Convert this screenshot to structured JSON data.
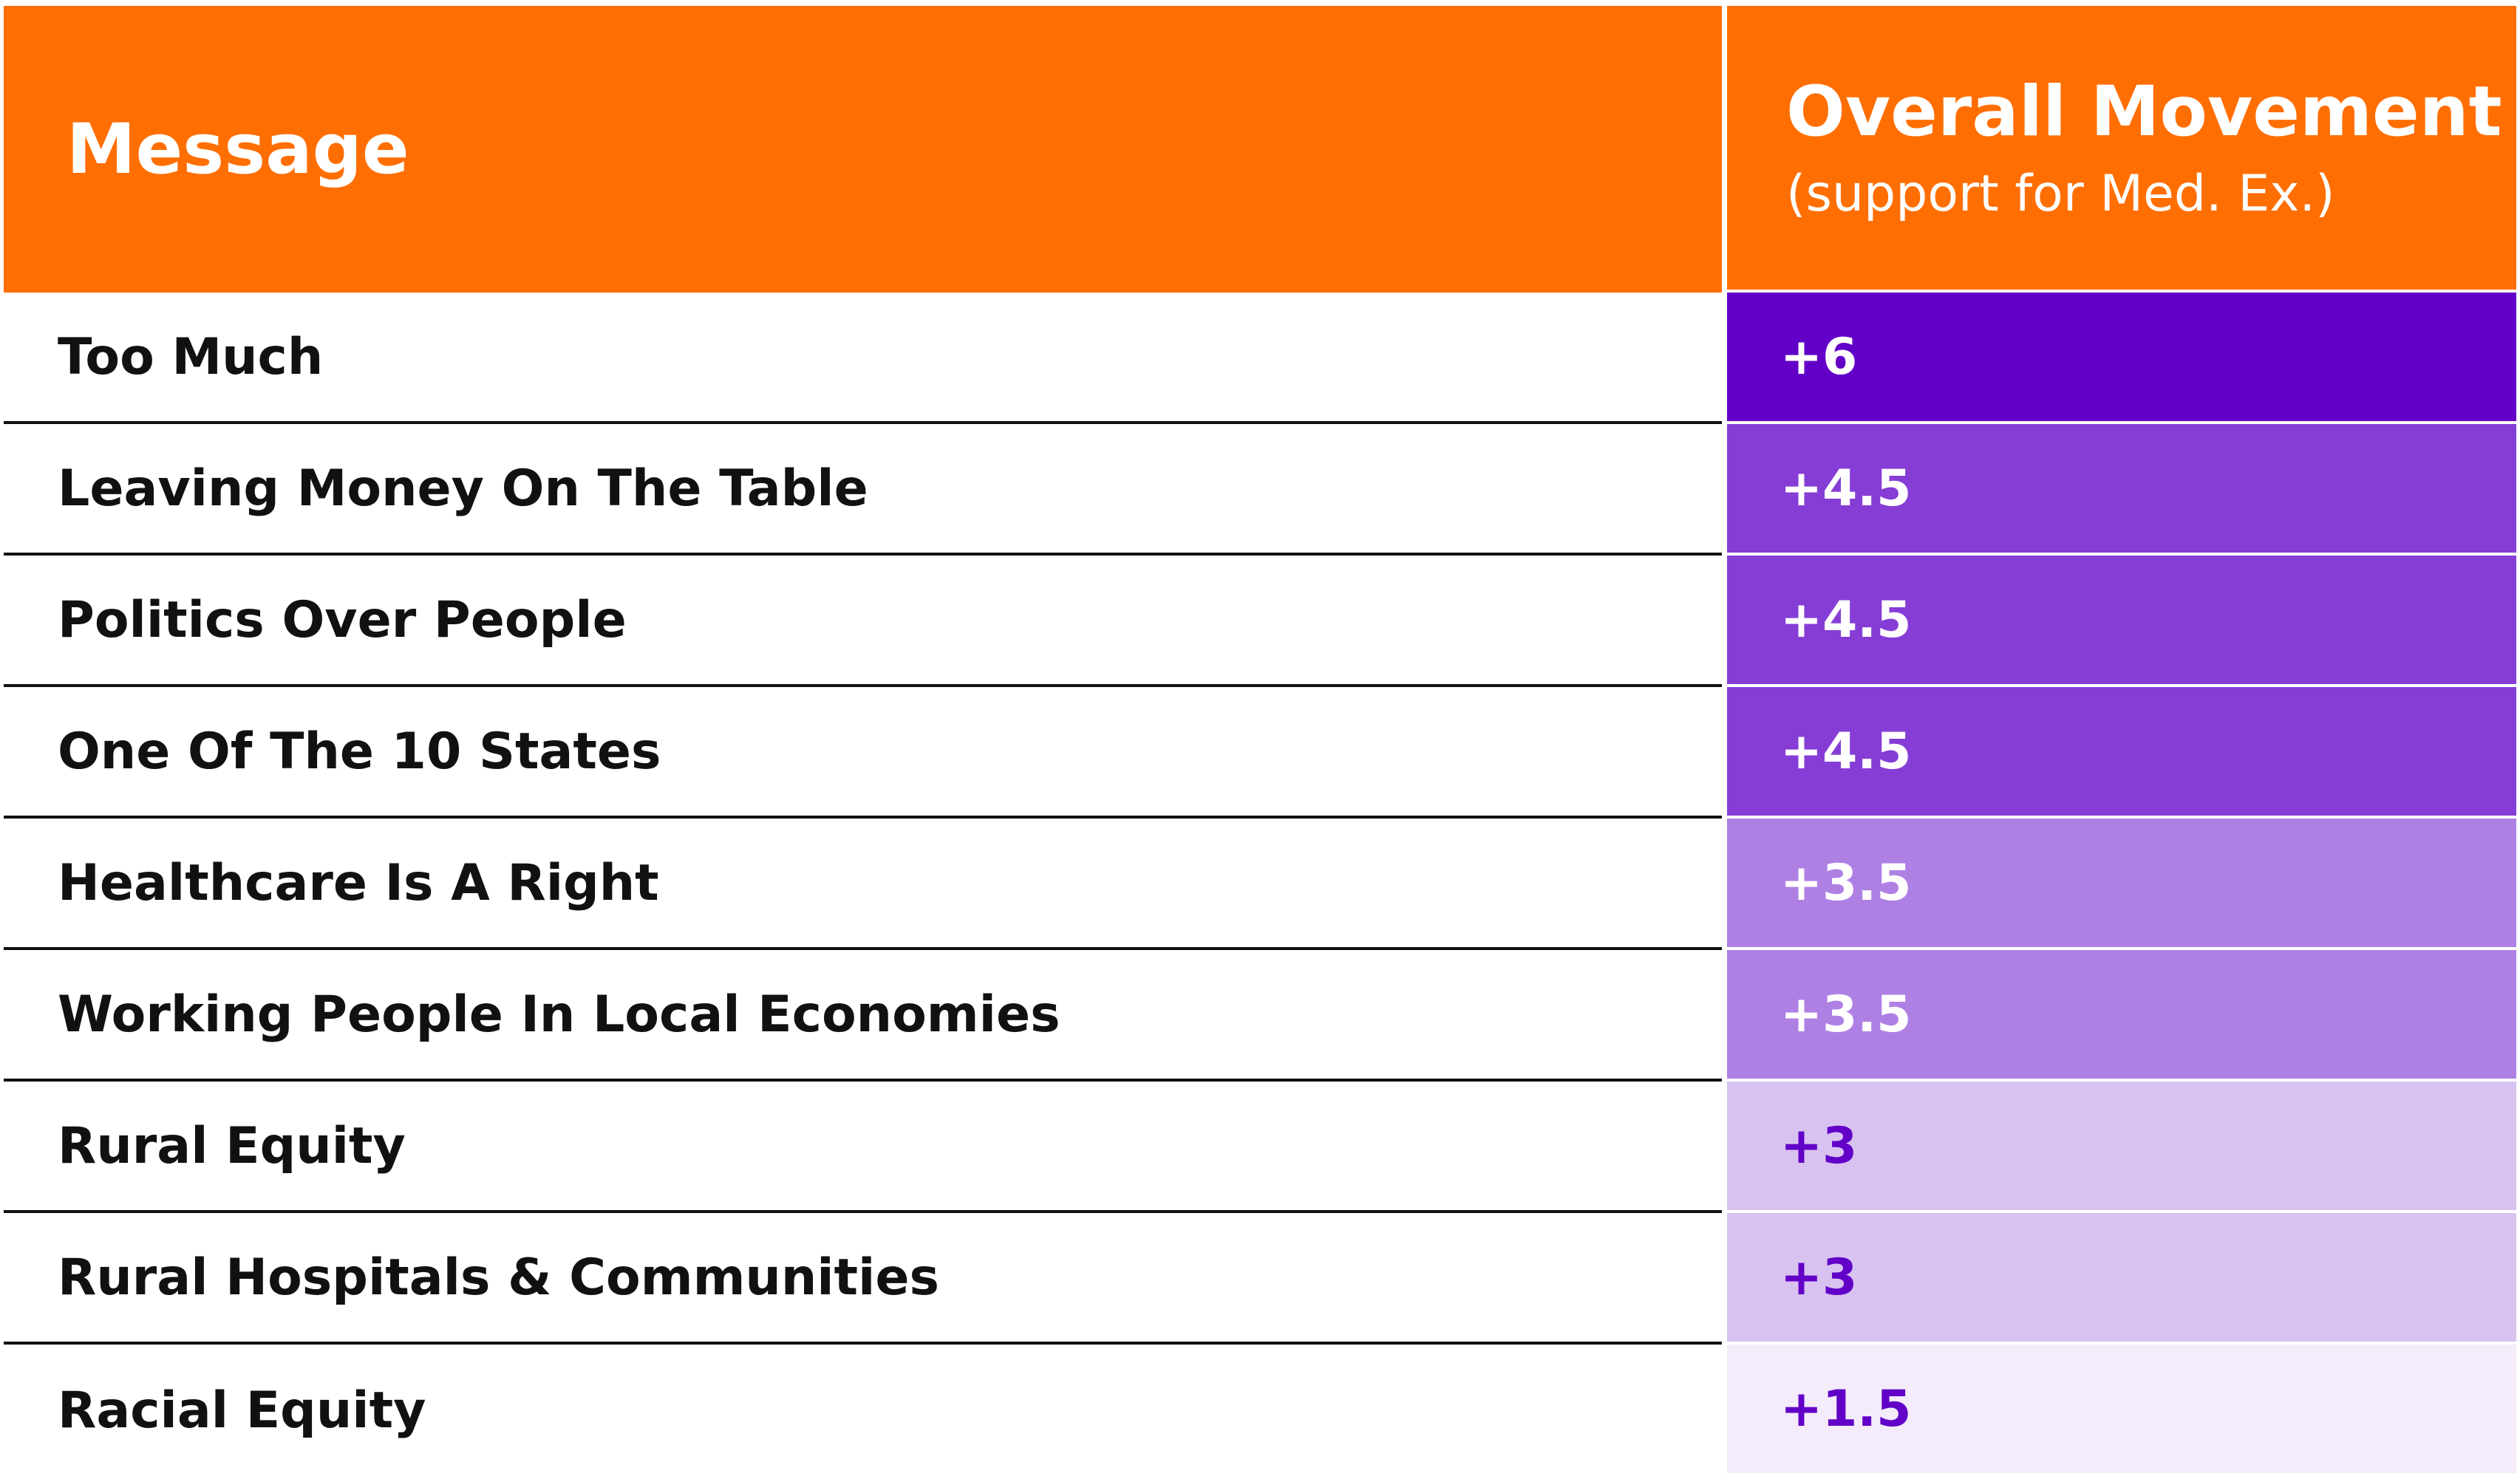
{
  "colors": {
    "header_orange": "#ff6e00",
    "level_6": "#6200c8",
    "level_4_5": "#863dd6",
    "level_3_5": "#af80e4",
    "level_3": "#d8c2f0",
    "level_1_5": "#f4ecfb",
    "text_light": "#ffffff",
    "text_purple": "#6200c8"
  },
  "chart_data": {
    "type": "table",
    "columns": [
      "Message",
      "Overall Movement"
    ],
    "header": {
      "message": "Message",
      "movement_title": "Overall Movement",
      "movement_subtitle": "(support for Med. Ex.)"
    },
    "rows": [
      {
        "message": "Too Much",
        "value": 6,
        "label": "+6"
      },
      {
        "message": "Leaving Money On The Table",
        "value": 4.5,
        "label": "+4.5"
      },
      {
        "message": "Politics Over People",
        "value": 4.5,
        "label": "+4.5"
      },
      {
        "message": "One Of The 10 States",
        "value": 4.5,
        "label": "+4.5"
      },
      {
        "message": "Healthcare Is A Right",
        "value": 3.5,
        "label": "+3.5"
      },
      {
        "message": "Working People In Local Economies",
        "value": 3.5,
        "label": "+3.5"
      },
      {
        "message": "Rural Equity",
        "value": 3,
        "label": "+3"
      },
      {
        "message": "Rural Hospitals & Communities",
        "value": 3,
        "label": "+3"
      },
      {
        "message": "Racial Equity",
        "value": 1.5,
        "label": "+1.5"
      }
    ]
  }
}
